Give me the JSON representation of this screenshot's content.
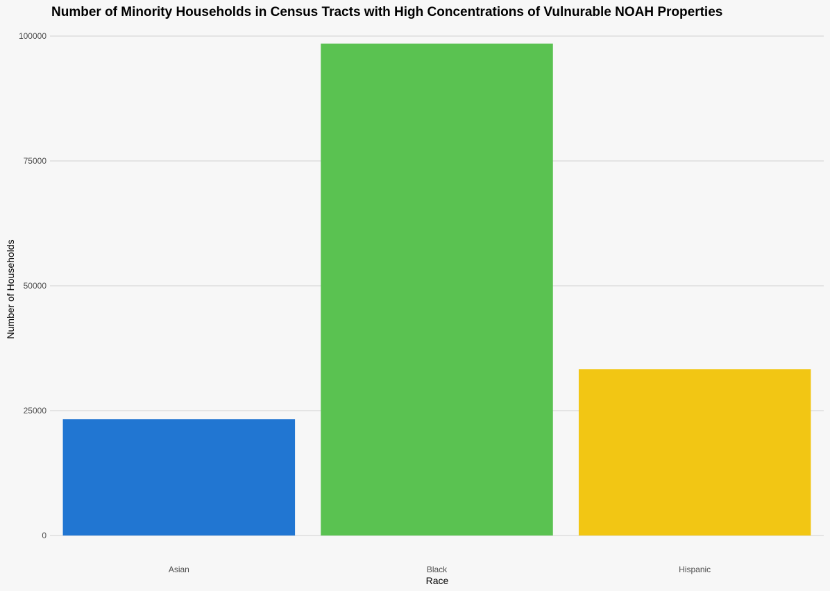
{
  "chart_data": {
    "type": "bar",
    "title": "Number of Minority Households in Census Tracts with High Concentrations of Vulnurable NOAH Properties",
    "xlabel": "Race",
    "ylabel": "Number of Households",
    "categories": [
      "Asian",
      "Black",
      "Hispanic"
    ],
    "values": [
      23300,
      98500,
      33300
    ],
    "colors": [
      "#2176d2",
      "#5ac251",
      "#f2c614"
    ],
    "ylim": [
      0,
      100000
    ],
    "yticks": [
      0,
      25000,
      50000,
      75000,
      100000
    ],
    "ytick_labels": [
      "0",
      "25000",
      "50000",
      "75000",
      "100000"
    ],
    "grid": "horizontal",
    "legend": "none",
    "background": "#f7f7f7"
  }
}
